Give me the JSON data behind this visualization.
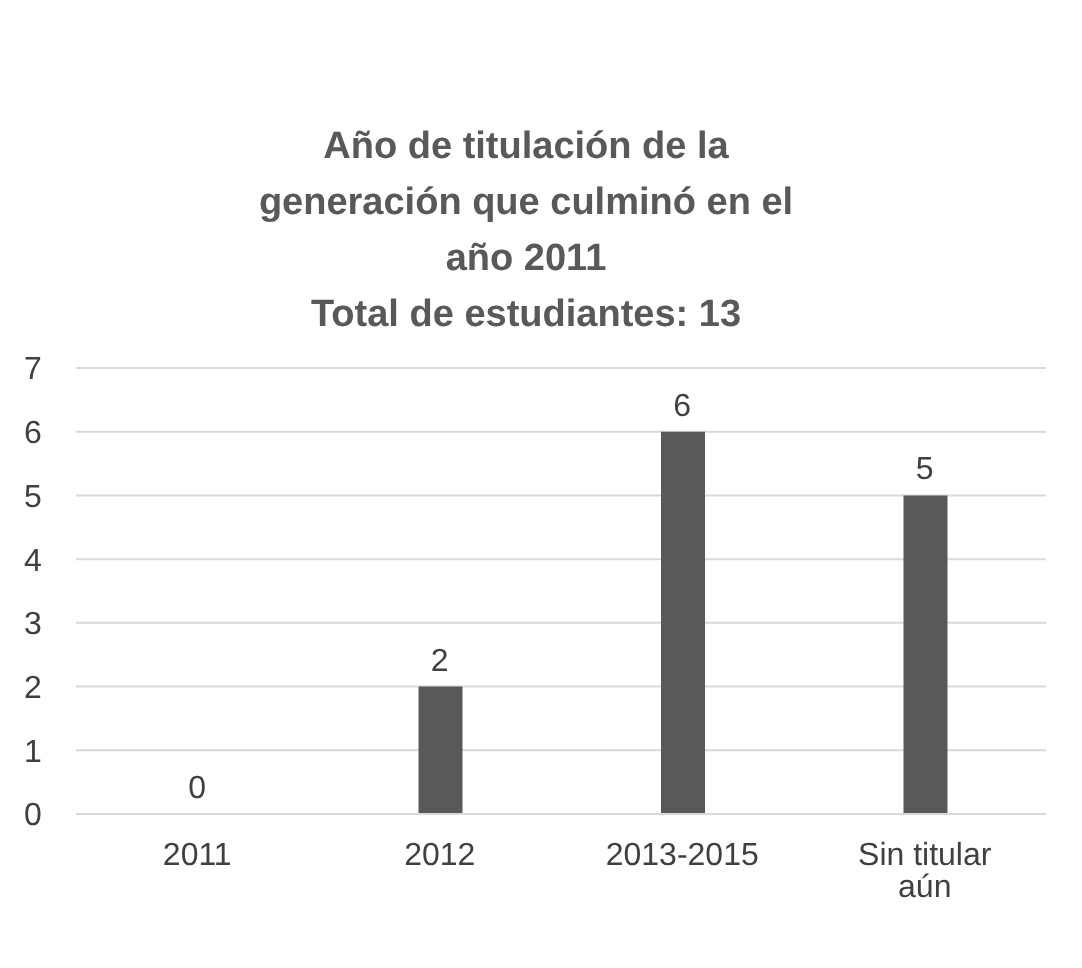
{
  "chart_data": {
    "type": "bar",
    "title": "Año de titulación de la generación que culminó en el año 2011",
    "subtitle": "Total de estudiantes: 13",
    "categories": [
      "2011",
      "2012",
      "2013-2015",
      "Sin titular aún"
    ],
    "values": [
      0,
      2,
      6,
      5
    ],
    "color": "#595959",
    "ylim": [
      0,
      7
    ],
    "yticks": [
      0,
      1,
      2,
      3,
      4,
      5,
      6,
      7
    ],
    "grid": "y",
    "data_labels": true
  }
}
